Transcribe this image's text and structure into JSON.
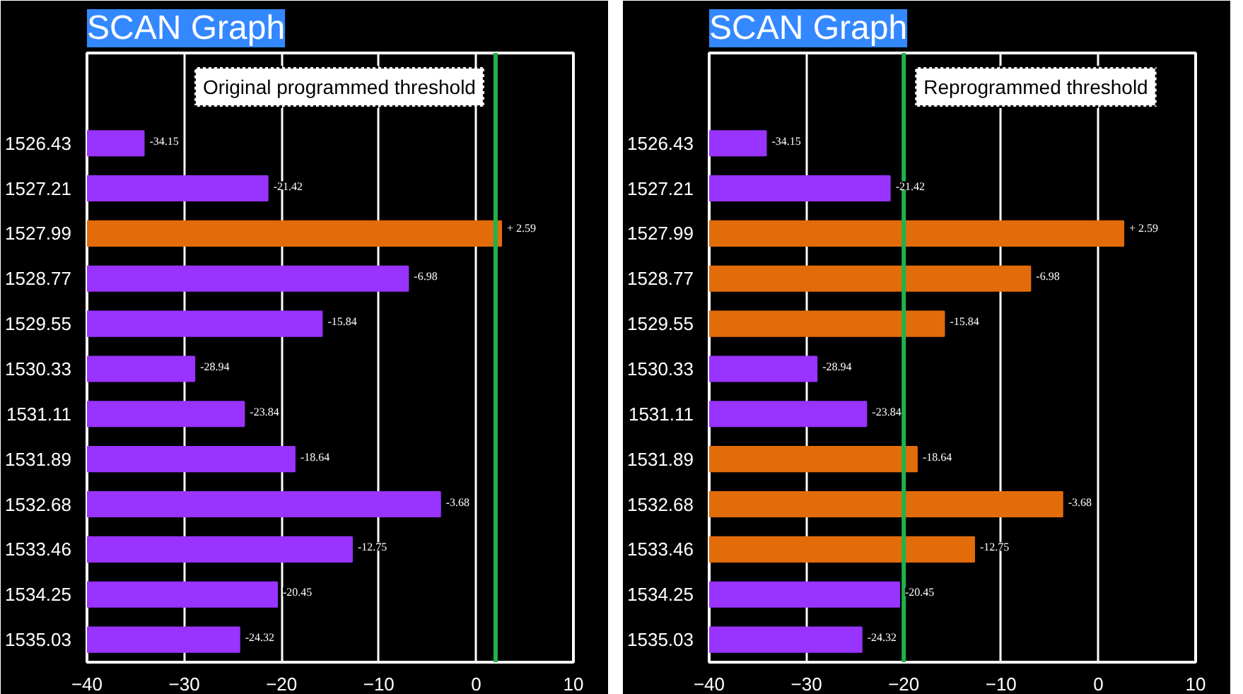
{
  "chart_data": [
    {
      "type": "bar",
      "orientation": "horizontal",
      "title": "SCAN Graph",
      "categories": [
        "1526.43",
        "1527.21",
        "1527.99",
        "1528.77",
        "1529.55",
        "1530.33",
        "1531.11",
        "1531.89",
        "1532.68",
        "1533.46",
        "1534.25",
        "1535.03"
      ],
      "base": [
        -40,
        -40,
        -40,
        -40,
        -40,
        -40,
        -40,
        -40,
        -40,
        -40,
        -40,
        -40
      ],
      "values": [
        5.85,
        18.58,
        42.59,
        33.02,
        24.16,
        11.06,
        16.16,
        21.36,
        36.32,
        27.25,
        19.55,
        15.68
      ],
      "value_labels": [
        "-34.15",
        "-21.42",
        "+ 2.59",
        "-6.98",
        "-15.84",
        "-28.94",
        "-23.84",
        "-18.64",
        "-3.68",
        "-12.75",
        "-20.45",
        "-24.32"
      ],
      "colors": [
        "#9933ff",
        "#9933ff",
        "#e36c0a",
        "#9933ff",
        "#9933ff",
        "#9933ff",
        "#9933ff",
        "#9933ff",
        "#9933ff",
        "#9933ff",
        "#9933ff",
        "#9933ff"
      ],
      "xlim": [
        -40,
        10
      ],
      "xticks": [
        -40,
        -30,
        -20,
        -10,
        0,
        10
      ],
      "grid": "x",
      "ref_lines": [
        {
          "axis": "x",
          "value": 2,
          "label": "Original programmed threshold",
          "color": "#22b14c"
        }
      ]
    },
    {
      "type": "bar",
      "orientation": "horizontal",
      "title": "SCAN Graph",
      "categories": [
        "1526.43",
        "1527.21",
        "1527.99",
        "1528.77",
        "1529.55",
        "1530.33",
        "1531.11",
        "1531.89",
        "1532.68",
        "1533.46",
        "1534.25",
        "1535.03"
      ],
      "base": [
        -40,
        -40,
        -40,
        -40,
        -40,
        -40,
        -40,
        -40,
        -40,
        -40,
        -40,
        -40
      ],
      "values": [
        5.85,
        18.58,
        42.59,
        33.02,
        24.16,
        11.06,
        16.16,
        21.36,
        36.32,
        27.25,
        19.55,
        15.68
      ],
      "value_labels": [
        "-34.15",
        "-21.42",
        "+ 2.59",
        "-6.98",
        "-15.84",
        "-28.94",
        "-23.84",
        "-18.64",
        "-3.68",
        "-12.75",
        "-20.45",
        "-24.32"
      ],
      "colors": [
        "#9933ff",
        "#9933ff",
        "#e36c0a",
        "#e36c0a",
        "#e36c0a",
        "#9933ff",
        "#9933ff",
        "#e36c0a",
        "#e36c0a",
        "#e36c0a",
        "#9933ff",
        "#9933ff"
      ],
      "xlim": [
        -40,
        10
      ],
      "xticks": [
        -40,
        -30,
        -20,
        -10,
        0,
        10
      ],
      "grid": "x",
      "ref_lines": [
        {
          "axis": "x",
          "value": -20,
          "label": "Reprogrammed threshold",
          "color": "#22b14c"
        }
      ]
    }
  ]
}
